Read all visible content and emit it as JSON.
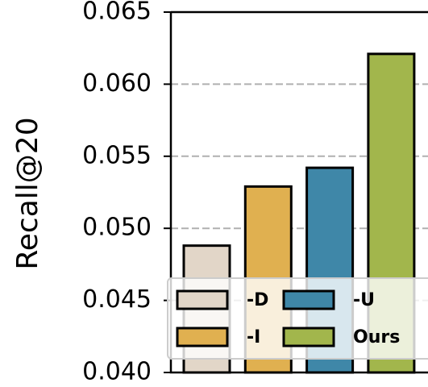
{
  "chart_data": {
    "type": "bar",
    "y_label": "Recall@20",
    "categories": [
      null
    ],
    "series": [
      {
        "name": "-D",
        "color": "#e2d6c8",
        "values": [
          0.0488
        ]
      },
      {
        "name": "-I",
        "color": "#e0b050",
        "values": [
          0.0529
        ]
      },
      {
        "name": "-U",
        "color": "#3f87a8",
        "values": [
          0.0542
        ]
      },
      {
        "name": "Ours",
        "color": "#a2b64c",
        "values": [
          0.0621
        ]
      }
    ],
    "ylim": [
      0.04,
      0.065
    ],
    "yticks": [
      {
        "value": 0.04,
        "label": "0.040"
      },
      0.045,
      {
        "value": 0.05,
        "label": "0.050"
      },
      0.055,
      {
        "value": 0.06,
        "label": "0.060"
      },
      0.065
    ],
    "grid": true,
    "legend": "lower left"
  }
}
